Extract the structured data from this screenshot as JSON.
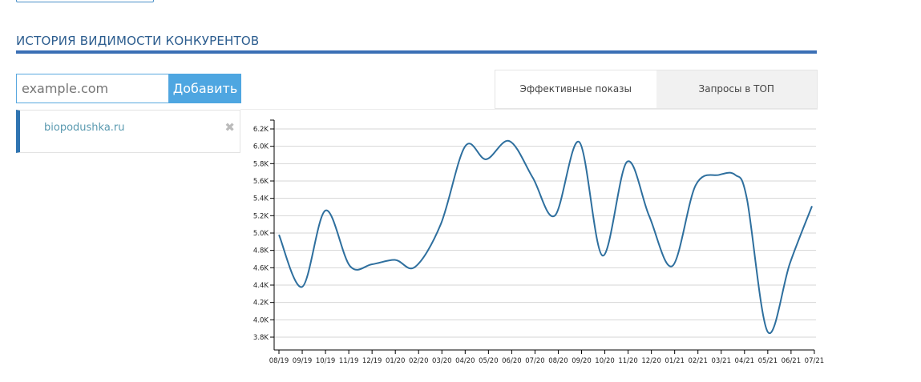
{
  "header": {
    "title": "ИСТОРИЯ ВИДИМОСТИ КОНКУРЕНТОВ"
  },
  "add_form": {
    "placeholder": "example.com",
    "button_label": "Добавить"
  },
  "competitors": [
    {
      "domain": "biopodushka.ru",
      "remove_icon": "close-icon"
    }
  ],
  "tabs": [
    {
      "label": "Эффективные показы",
      "active": true
    },
    {
      "label": "Запросы в ТОП",
      "active": false
    }
  ],
  "colors": {
    "accent": "#3a6fb5",
    "line": "#2e6f9e",
    "button": "#4ea6e1"
  },
  "chart_data": {
    "type": "line",
    "series_name": "biopodushka.ru",
    "categories": [
      "08/19",
      "09/19",
      "10/19",
      "11/19",
      "12/19",
      "01/20",
      "02/20",
      "03/20",
      "04/20",
      "05/20",
      "06/20",
      "07/20",
      "08/20",
      "09/20",
      "10/20",
      "11/20",
      "12/20",
      "01/21",
      "02/21",
      "03/21",
      "04/21",
      "05/21",
      "06/21",
      "07/21"
    ],
    "points": [
      [
        0,
        4.98
      ],
      [
        1,
        4.38
      ],
      [
        2,
        5.26
      ],
      [
        3.05,
        4.62
      ],
      [
        4,
        4.64
      ],
      [
        5,
        4.69
      ],
      [
        5.85,
        4.61
      ],
      [
        6.95,
        5.1
      ],
      [
        8,
        6.0
      ],
      [
        8.9,
        5.85
      ],
      [
        9.9,
        6.06
      ],
      [
        10.9,
        5.64
      ],
      [
        11.85,
        5.2
      ],
      [
        12.9,
        6.05
      ],
      [
        13.9,
        4.74
      ],
      [
        14.95,
        5.82
      ],
      [
        15.9,
        5.2
      ],
      [
        16.9,
        4.62
      ],
      [
        17.9,
        5.55
      ],
      [
        18.9,
        5.67
      ],
      [
        19.6,
        5.67
      ],
      [
        20.1,
        5.4
      ],
      [
        21.0,
        3.86
      ],
      [
        21.95,
        4.65
      ],
      [
        22.9,
        5.31
      ]
    ],
    "yticks": [
      "3.8K",
      "4.0K",
      "4.2K",
      "4.4K",
      "4.6K",
      "4.8K",
      "5.0K",
      "5.2K",
      "5.4K",
      "5.6K",
      "5.8K",
      "6.0K",
      "6.2K"
    ],
    "ytick_values": [
      3.8,
      4.0,
      4.2,
      4.4,
      4.6,
      4.8,
      5.0,
      5.2,
      5.4,
      5.6,
      5.8,
      6.0,
      6.2
    ],
    "ylim": [
      3.8,
      6.2
    ],
    "y_unit": "K",
    "grid": true
  }
}
